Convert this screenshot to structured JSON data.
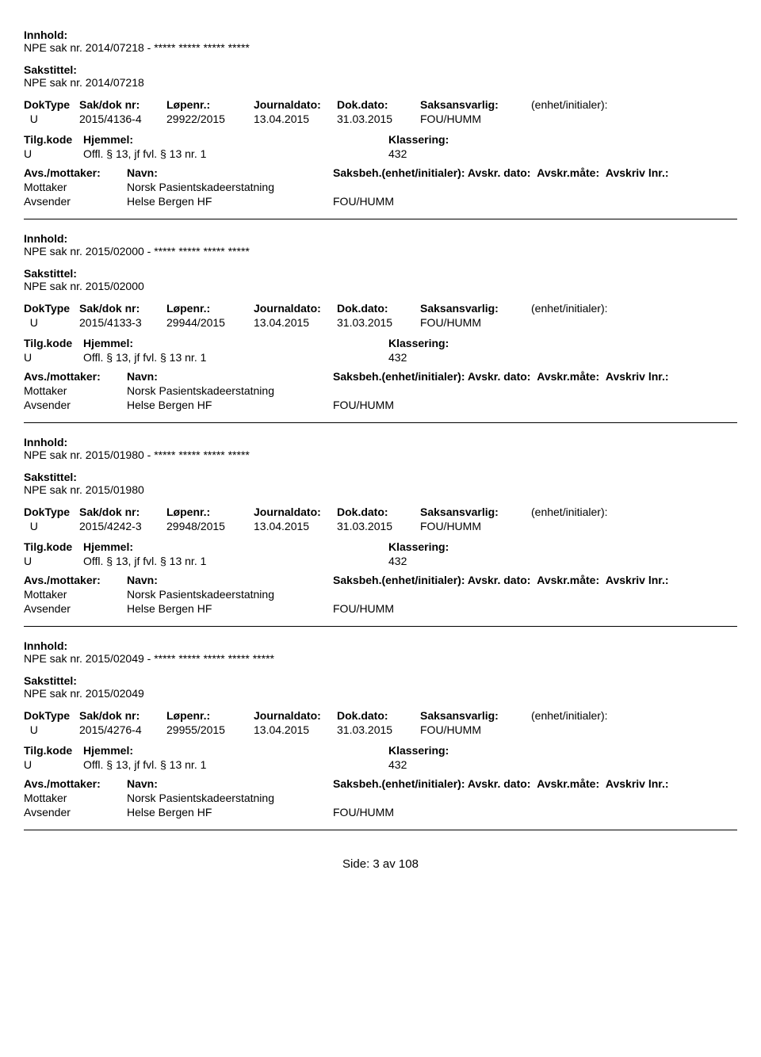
{
  "labels": {
    "innhold": "Innhold:",
    "sakstittel": "Sakstittel:",
    "doktype": "DokType",
    "saknr": "Sak/dok nr:",
    "lopenr": "Løpenr.:",
    "journaldato": "Journaldato:",
    "dokdato": "Dok.dato:",
    "saksansvarlig": "Saksansvarlig:",
    "enhet_init": "(enhet/initialer):",
    "tilgkode": "Tilg.kode",
    "hjemmel": "Hjemmel:",
    "klassering": "Klassering:",
    "avsmottaker": "Avs./mottaker:",
    "navn": "Navn:",
    "saksbeh": "Saksbeh.(enhet/initialer):",
    "avskr_dato": "Avskr. dato:",
    "avskr_mate": "Avskr.måte:",
    "avskriv_lnr": "Avskriv lnr.:",
    "mottaker": "Mottaker",
    "avsender": "Avsender"
  },
  "entries": [
    {
      "innhold": "NPE sak nr. 2014/07218 - ***** ***** ***** *****",
      "sakstittel": "NPE sak nr. 2014/07218",
      "doktype": "U",
      "saknr": "2015/4136-4",
      "lopenr": "29922/2015",
      "journaldato": "13.04.2015",
      "dokdato": "31.03.2015",
      "saksansvarlig": "FOU/HUMM",
      "tilgkode": "U",
      "hjemmel": "Offl. § 13, jf fvl. § 13 nr. 1",
      "klassering": "432",
      "mottaker_navn": "Norsk Pasientskadeerstatning",
      "avsender_navn": "Helse Bergen HF",
      "avsender_enhet": "FOU/HUMM"
    },
    {
      "innhold": "NPE sak nr. 2015/02000 - ***** ***** ***** *****",
      "sakstittel": "NPE sak nr. 2015/02000",
      "doktype": "U",
      "saknr": "2015/4133-3",
      "lopenr": "29944/2015",
      "journaldato": "13.04.2015",
      "dokdato": "31.03.2015",
      "saksansvarlig": "FOU/HUMM",
      "tilgkode": "U",
      "hjemmel": "Offl. § 13, jf fvl. § 13 nr. 1",
      "klassering": "432",
      "mottaker_navn": "Norsk Pasientskadeerstatning",
      "avsender_navn": "Helse Bergen HF",
      "avsender_enhet": "FOU/HUMM"
    },
    {
      "innhold": "NPE sak nr. 2015/01980 - ***** ***** ***** *****",
      "sakstittel": "NPE sak nr. 2015/01980",
      "doktype": "U",
      "saknr": "2015/4242-3",
      "lopenr": "29948/2015",
      "journaldato": "13.04.2015",
      "dokdato": "31.03.2015",
      "saksansvarlig": "FOU/HUMM",
      "tilgkode": "U",
      "hjemmel": "Offl. § 13, jf fvl. § 13 nr. 1",
      "klassering": "432",
      "mottaker_navn": "Norsk Pasientskadeerstatning",
      "avsender_navn": "Helse Bergen HF",
      "avsender_enhet": "FOU/HUMM"
    },
    {
      "innhold": "NPE sak nr. 2015/02049 - ***** ***** ***** ***** *****",
      "sakstittel": "NPE sak nr. 2015/02049",
      "doktype": "U",
      "saknr": "2015/4276-4",
      "lopenr": "29955/2015",
      "journaldato": "13.04.2015",
      "dokdato": "31.03.2015",
      "saksansvarlig": "FOU/HUMM",
      "tilgkode": "U",
      "hjemmel": "Offl. § 13, jf fvl. § 13 nr. 1",
      "klassering": "432",
      "mottaker_navn": "Norsk Pasientskadeerstatning",
      "avsender_navn": "Helse Bergen HF",
      "avsender_enhet": "FOU/HUMM"
    }
  ],
  "footer": "Side:  3 av 108"
}
